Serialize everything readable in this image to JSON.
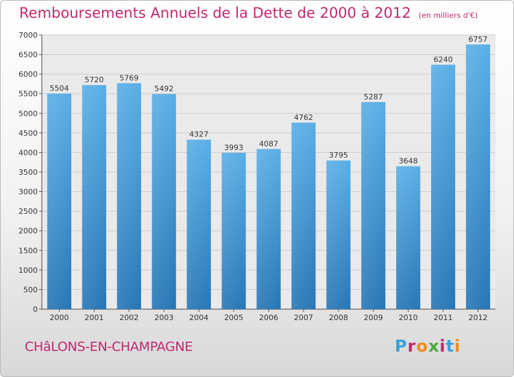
{
  "header": {
    "title": "Remboursements Annuels de la Dette de 2000 à 2012",
    "subtitle": "(en milliers d'€)"
  },
  "footer": {
    "city": "CHâLONS-EN-CHAMPAGNE",
    "logo": "Proxiti",
    "logo_colors": [
      "#3aa0d8",
      "#c2286f",
      "#f28c1c",
      "#4caa3a",
      "#c2286f",
      "#3aa0d8",
      "#f28c1c"
    ]
  },
  "chart_data": {
    "type": "bar",
    "title": "Remboursements Annuels de la Dette de 2000 à 2012",
    "subtitle": "(en milliers d'€)",
    "categories": [
      "2000",
      "2001",
      "2002",
      "2003",
      "2004",
      "2005",
      "2006",
      "2007",
      "2008",
      "2009",
      "2010",
      "2011",
      "2012"
    ],
    "values": [
      5504,
      5720,
      5769,
      5492,
      4327,
      3993,
      4087,
      4762,
      3795,
      5287,
      3648,
      6240,
      6757
    ],
    "ylim": [
      0,
      7000
    ],
    "ytick_step": 500,
    "grid": true,
    "bar_color_top": "#5aaee6",
    "bar_color_bottom": "#2676b6",
    "grid_color": "#cccccc",
    "background_color": "#eaeaea"
  }
}
